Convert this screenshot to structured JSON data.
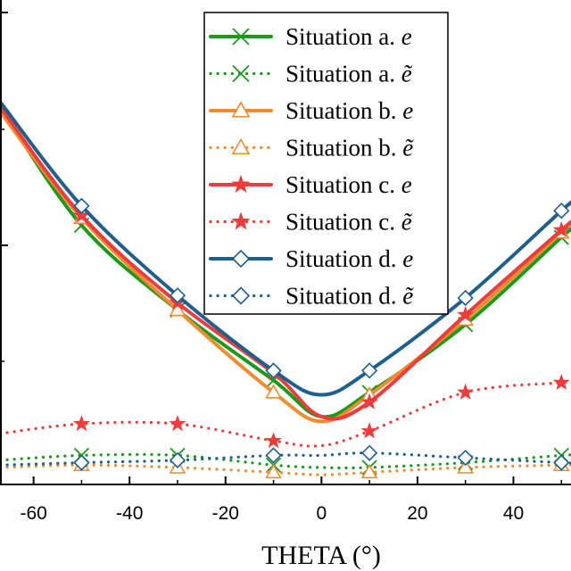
{
  "chart_data": {
    "type": "line",
    "xlabel": "THETA (°)",
    "ylabel": "",
    "title": "",
    "xlim": [
      -67,
      52
    ],
    "ylim": [
      0,
      1
    ],
    "x_ticks": [
      -60,
      -40,
      -20,
      0,
      20,
      40
    ],
    "x_tick_labels": [
      "-60",
      "-40",
      "-20",
      "0",
      "20",
      "40"
    ],
    "legend_position": "top-center",
    "grid": false,
    "series": [
      {
        "name": "Situation a.",
        "symbol": "e",
        "color": "#1a9a1a",
        "style": "solid",
        "marker": "x",
        "x": [
          -67,
          -50,
          -30,
          -10,
          0,
          10,
          30,
          50,
          52
        ],
        "y": [
          0.78,
          0.535,
          0.36,
          0.215,
          0.14,
          0.19,
          0.33,
          0.51,
          0.525
        ]
      },
      {
        "name": "Situation a.",
        "symbol": "ẽ",
        "color": "#1a9a1a",
        "style": "dotted",
        "marker": "x",
        "x": [
          -67,
          -50,
          -30,
          -10,
          0,
          10,
          30,
          50,
          52
        ],
        "y": [
          0.05,
          0.06,
          0.06,
          0.04,
          0.035,
          0.035,
          0.045,
          0.06,
          0.06
        ]
      },
      {
        "name": "Situation b.",
        "symbol": "e",
        "color": "#f28a2e",
        "style": "solid",
        "marker": "triangle",
        "x": [
          -67,
          -50,
          -30,
          -10,
          0,
          10,
          30,
          50,
          52
        ],
        "y": [
          0.77,
          0.55,
          0.36,
          0.19,
          0.13,
          0.185,
          0.34,
          0.52,
          0.54
        ]
      },
      {
        "name": "Situation b.",
        "symbol": "ẽ",
        "color": "#f28a2e",
        "style": "dotted",
        "marker": "triangle",
        "x": [
          -67,
          -50,
          -30,
          -10,
          0,
          10,
          30,
          50,
          52
        ],
        "y": [
          0.035,
          0.04,
          0.035,
          0.025,
          0.02,
          0.025,
          0.035,
          0.04,
          0.04
        ]
      },
      {
        "name": "Situation c.",
        "symbol": "e",
        "color": "#ef3b3b",
        "style": "solid",
        "marker": "star",
        "x": [
          -67,
          -50,
          -30,
          -10,
          0,
          10,
          30,
          50,
          52
        ],
        "y": [
          0.78,
          0.555,
          0.375,
          0.23,
          0.14,
          0.17,
          0.35,
          0.525,
          0.54
        ]
      },
      {
        "name": "Situation c.",
        "symbol": "ẽ",
        "color": "#ef3b3b",
        "style": "dotted",
        "marker": "star",
        "x": [
          -67,
          -50,
          -30,
          -10,
          0,
          10,
          30,
          50,
          52
        ],
        "y": [
          0.105,
          0.125,
          0.125,
          0.09,
          0.08,
          0.11,
          0.19,
          0.21,
          0.21
        ]
      },
      {
        "name": "Situation d.",
        "symbol": "e",
        "color": "#1f5f8b",
        "style": "solid",
        "marker": "diamond",
        "x": [
          -67,
          -50,
          -30,
          -10,
          0,
          10,
          30,
          50,
          52
        ],
        "y": [
          0.79,
          0.575,
          0.39,
          0.235,
          0.185,
          0.235,
          0.385,
          0.565,
          0.58
        ]
      },
      {
        "name": "Situation d.",
        "symbol": "ẽ",
        "color": "#1f5f8b",
        "style": "dotted",
        "marker": "diamond",
        "x": [
          -67,
          -50,
          -30,
          -10,
          0,
          10,
          30,
          50,
          52
        ],
        "y": [
          0.04,
          0.045,
          0.05,
          0.06,
          0.06,
          0.065,
          0.055,
          0.045,
          0.045
        ]
      }
    ]
  }
}
